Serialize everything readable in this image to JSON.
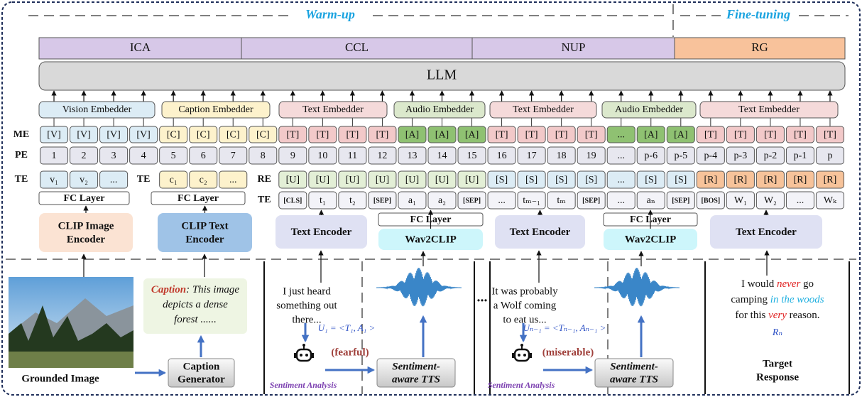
{
  "phases": {
    "warmup": "Warm-up",
    "finetune": "Fine-tuning"
  },
  "tasks": [
    {
      "label": "ICA",
      "color": "#d7c8e8"
    },
    {
      "label": "CCL",
      "color": "#d7c8e8"
    },
    {
      "label": "NUP",
      "color": "#d7c8e8"
    },
    {
      "label": "RG",
      "color": "#f8c29b"
    }
  ],
  "llm": "LLM",
  "embedders": [
    {
      "label": "Vision Embedder",
      "color": "#dcecf5"
    },
    {
      "label": "Caption Embedder",
      "color": "#fdf2cc"
    },
    {
      "label": "Text Embedder",
      "color": "#f5dada"
    },
    {
      "label": "Audio Embedder",
      "color": "#dbe8cc"
    },
    {
      "label": "Text Embedder",
      "color": "#f5dada"
    },
    {
      "label": "Audio Embedder",
      "color": "#dbe8cc"
    },
    {
      "label": "Text Embedder",
      "color": "#f5dada"
    }
  ],
  "me": {
    "label": "ME",
    "groups": [
      {
        "tokens": [
          "[V]",
          "[V]",
          "[V]",
          "[V]"
        ],
        "color": "#dcecf5"
      },
      {
        "tokens": [
          "[C]",
          "[C]",
          "[C]",
          "[C]"
        ],
        "color": "#fdf2cc"
      },
      {
        "tokens": [
          "[T]",
          "[T]",
          "[T]",
          "[T]"
        ],
        "color": "#f2c9c9"
      },
      {
        "tokens": [
          "[A]",
          "[A]",
          "[A]"
        ],
        "color": "#8fc172"
      },
      {
        "tokens": [
          "[T]",
          "[T]",
          "[T]",
          "[T]"
        ],
        "color": "#f2c9c9"
      },
      {
        "tokens": [
          "...",
          "[A]",
          "[A]"
        ],
        "color": "#8fc172"
      },
      {
        "tokens": [
          "[T]",
          "[T]",
          "[T]",
          "[T]",
          "[T]"
        ],
        "color": "#f2c9c9"
      }
    ]
  },
  "pe": {
    "label": "PE",
    "color": "#e7e7ef",
    "tokens": [
      "1",
      "2",
      "3",
      "4",
      "5",
      "6",
      "7",
      "8",
      "9",
      "10",
      "11",
      "12",
      "13",
      "14",
      "15",
      "16",
      "17",
      "18",
      "19",
      "...",
      "p-6",
      "p-5",
      "p-4",
      "p-3",
      "p-2",
      "p-1",
      "p"
    ]
  },
  "te_visual": {
    "label": "TE",
    "color": "#dcecf5",
    "tokens": [
      "v₁",
      "v₂",
      "..."
    ],
    "fc": "FC Layer"
  },
  "te_caption": {
    "label": "TE",
    "color": "#fdf2cc",
    "tokens": [
      "c₁",
      "c₂",
      "..."
    ],
    "fc": "FC Layer"
  },
  "re": {
    "label": "RE",
    "groups": [
      {
        "tokens": [
          "[U]",
          "[U]",
          "[U]",
          "[U]",
          "[U]",
          "[U]",
          "[U]"
        ],
        "color": "#e3efd6"
      },
      {
        "tokens": [
          "[S]",
          "[S]",
          "[S]",
          "[S]"
        ],
        "color": "#dcecf5"
      },
      {
        "tokens": [
          "...",
          "[S]",
          "[S]"
        ],
        "color": "#dcecf5"
      },
      {
        "tokens": [
          "[R]",
          "[R]",
          "[R]",
          "[R]",
          "[R]"
        ],
        "color": "#f7c39a"
      }
    ]
  },
  "te_text": {
    "label": "TE",
    "color": "#f3f3f8",
    "tokens": [
      "[CLS]",
      "t₁",
      "t₂",
      "[SEP]",
      "a₁",
      "a₂",
      "[SEP]",
      "...",
      "tₘ₋₁",
      "tₘ",
      "[SEP]",
      "...",
      "aₙ",
      "[SEP]",
      "[BOS]",
      "W₁",
      "W₂",
      "...",
      "Wₖ"
    ]
  },
  "encoders": [
    {
      "lines": [
        "CLIP Image",
        "Encoder"
      ],
      "color": "#fbe3d3"
    },
    {
      "lines": [
        "CLIP Text",
        "Encoder"
      ],
      "color": "#9fc3e7"
    },
    {
      "lines": [
        "Text Encoder"
      ],
      "color": "#dfe1f3"
    },
    {
      "top": "FC Layer",
      "lines": [
        "Wav2CLIP"
      ],
      "color": "#cdf6fb"
    },
    {
      "lines": [
        "Text Encoder"
      ],
      "color": "#dfe1f3"
    },
    {
      "top": "FC Layer",
      "lines": [
        "Wav2CLIP"
      ],
      "color": "#cdf6fb"
    },
    {
      "lines": [
        "Text Encoder"
      ],
      "color": "#dfe1f3"
    }
  ],
  "grounded_image": "Grounded Image",
  "caption_box": {
    "color": "#eef5e3",
    "lines": [
      [
        {
          "text": "Caption",
          "color": "#c0392b",
          "bold": true
        },
        {
          "text": ": This image"
        }
      ],
      [
        {
          "text": "depicts a dense"
        }
      ],
      [
        {
          "text": "forest ......"
        }
      ]
    ]
  },
  "caption_generator": [
    "Caption",
    "Generator"
  ],
  "dialogue": [
    {
      "utterance": [
        "I just heard",
        "something out",
        "there..."
      ],
      "turn": "U₁ = <T₁, A₁ >",
      "sentiment": "(fearful)",
      "analysis": "Sentiment Analysis",
      "tts": [
        "Sentiment-",
        "aware TTS"
      ]
    },
    {
      "utterance": [
        "It was probably",
        "a Wolf coming",
        "to eat us..."
      ],
      "turn": "Uₙ₋₁ = <Tₙ₋₁, Aₙ₋₁ >",
      "sentiment": "(miserable)",
      "analysis": "Sentiment Analysis",
      "tts": [
        "Sentiment-",
        "aware TTS"
      ]
    }
  ],
  "ellipsis": "...",
  "target": {
    "lines": [
      [
        {
          "text": "I would "
        },
        {
          "text": "never",
          "color": "#e02020",
          "italic": true
        },
        {
          "text": " go"
        }
      ],
      [
        {
          "text": "camping "
        },
        {
          "text": "in the woods",
          "color": "#20b0e0",
          "italic": true
        }
      ],
      [
        {
          "text": "for this "
        },
        {
          "text": "very",
          "color": "#e02020",
          "italic": true
        },
        {
          "text": " reason."
        }
      ]
    ],
    "symbol": "Rₙ",
    "label": [
      "Target",
      "Response"
    ]
  }
}
